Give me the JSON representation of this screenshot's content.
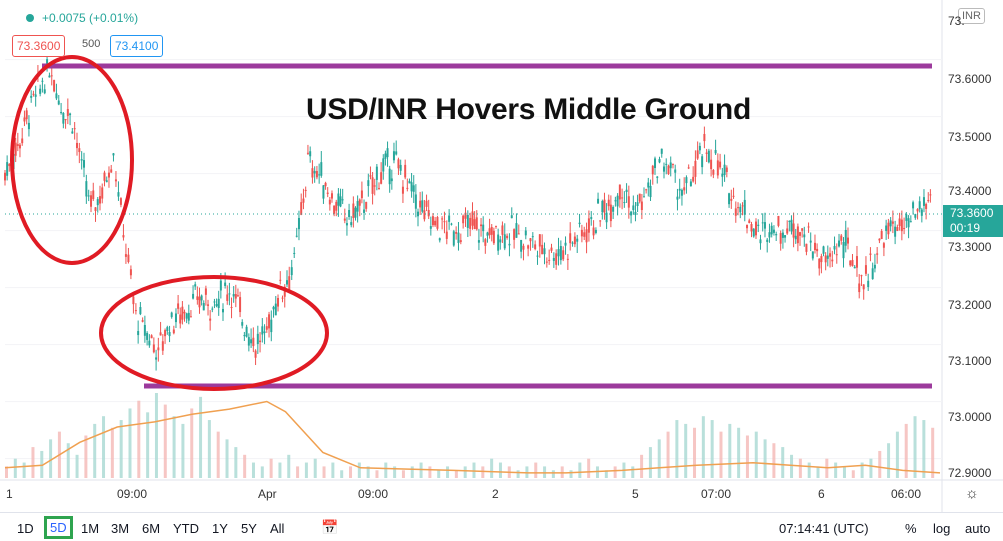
{
  "header": {
    "change_text": "+0.0075 (+0.01%)",
    "bid": "73.3600",
    "spread": "500",
    "ask": "73.4100",
    "symbol_tag": "INR"
  },
  "headline": "USD/INR Hovers Middle Ground",
  "price_axis": {
    "ticks": [
      "73.6000",
      "73.5000",
      "73.4000",
      "73.3000",
      "73.2000",
      "73.1000",
      "73.0000",
      "72.9000"
    ],
    "top_partial": "73.",
    "current_price": "73.3600",
    "countdown": "00:19"
  },
  "time_axis": {
    "labels": [
      "1",
      "09:00",
      "Apr",
      "09:00",
      "2",
      "5",
      "07:00",
      "6",
      "06:00"
    ]
  },
  "bottom_bar": {
    "ranges": [
      "1D",
      "5D",
      "1M",
      "3M",
      "6M",
      "YTD",
      "1Y",
      "5Y",
      "All"
    ],
    "active_range": "5D",
    "clock": "07:14:41 (UTC)",
    "percent": "%",
    "log": "log",
    "auto": "auto"
  },
  "colors": {
    "up": "#26a69a",
    "down": "#ef5350",
    "level_line": "#9c3a9c",
    "annotation_circle": "#e01b24",
    "moving_average": "#f0a050"
  },
  "chart_data": {
    "type": "candlestick",
    "ylim": [
      72.88,
      73.68
    ],
    "levels": [
      73.62,
      73.055
    ],
    "series_path": [
      [
        0,
        73.4
      ],
      [
        8,
        73.46
      ],
      [
        14,
        73.52
      ],
      [
        20,
        73.56
      ],
      [
        25,
        73.58
      ],
      [
        30,
        73.52
      ],
      [
        36,
        73.5
      ],
      [
        41,
        73.41
      ],
      [
        46,
        73.34
      ],
      [
        52,
        73.37
      ],
      [
        58,
        73.44
      ],
      [
        62,
        73.33
      ],
      [
        66,
        73.24
      ],
      [
        70,
        73.15
      ],
      [
        76,
        73.12
      ],
      [
        82,
        73.09
      ],
      [
        88,
        73.14
      ],
      [
        96,
        73.16
      ],
      [
        104,
        73.18
      ],
      [
        112,
        73.17
      ],
      [
        120,
        73.2
      ],
      [
        128,
        73.14
      ],
      [
        134,
        73.1
      ],
      [
        140,
        73.12
      ],
      [
        146,
        73.19
      ],
      [
        152,
        73.22
      ],
      [
        156,
        73.27
      ],
      [
        162,
        73.42
      ],
      [
        168,
        73.4
      ],
      [
        176,
        73.35
      ],
      [
        184,
        73.32
      ],
      [
        192,
        73.35
      ],
      [
        200,
        73.4
      ],
      [
        208,
        73.42
      ],
      [
        214,
        73.39
      ],
      [
        222,
        73.34
      ],
      [
        230,
        73.31
      ],
      [
        240,
        73.3
      ],
      [
        250,
        73.31
      ],
      [
        258,
        73.29
      ],
      [
        266,
        73.3
      ],
      [
        276,
        73.29
      ],
      [
        286,
        73.27
      ],
      [
        296,
        73.26
      ],
      [
        306,
        73.29
      ],
      [
        316,
        73.32
      ],
      [
        324,
        73.35
      ],
      [
        330,
        73.38
      ],
      [
        336,
        73.33
      ],
      [
        344,
        73.37
      ],
      [
        350,
        73.42
      ],
      [
        356,
        73.41
      ],
      [
        362,
        73.36
      ],
      [
        368,
        73.4
      ],
      [
        374,
        73.44
      ],
      [
        380,
        73.42
      ],
      [
        386,
        73.38
      ],
      [
        392,
        73.35
      ],
      [
        398,
        73.32
      ],
      [
        404,
        73.29
      ],
      [
        410,
        73.31
      ],
      [
        416,
        73.3
      ],
      [
        424,
        73.31
      ],
      [
        432,
        73.27
      ],
      [
        440,
        73.24
      ],
      [
        446,
        73.28
      ],
      [
        452,
        73.26
      ],
      [
        458,
        73.21
      ],
      [
        464,
        73.24
      ],
      [
        470,
        73.29
      ],
      [
        476,
        73.31
      ],
      [
        482,
        73.3
      ],
      [
        488,
        73.33
      ],
      [
        496,
        73.36
      ]
    ],
    "volume": [
      3,
      5,
      4,
      8,
      7,
      10,
      12,
      9,
      6,
      11,
      14,
      16,
      13,
      15,
      18,
      20,
      17,
      22,
      19,
      16,
      14,
      18,
      21,
      15,
      12,
      10,
      8,
      6,
      4,
      3,
      5,
      4,
      6,
      3,
      4,
      5,
      3,
      4,
      2,
      3,
      4,
      3,
      2,
      4,
      3,
      2,
      3,
      4,
      3,
      2,
      3,
      2,
      3,
      4,
      3,
      5,
      4,
      3,
      2,
      3,
      4,
      3,
      2,
      3,
      2,
      4,
      5,
      3,
      2,
      3,
      4,
      3,
      6,
      8,
      10,
      12,
      15,
      14,
      13,
      16,
      15,
      12,
      14,
      13,
      11,
      12,
      10,
      9,
      8,
      6,
      5,
      4,
      3,
      5,
      4,
      3,
      2,
      4,
      5,
      7,
      9,
      12,
      14,
      16,
      15,
      13
    ],
    "ma_path": [
      [
        0,
        0.04
      ],
      [
        20,
        0.05
      ],
      [
        40,
        0.14
      ],
      [
        60,
        0.2
      ],
      [
        80,
        0.22
      ],
      [
        100,
        0.25
      ],
      [
        120,
        0.27
      ],
      [
        140,
        0.3
      ],
      [
        150,
        0.26
      ],
      [
        170,
        0.1
      ],
      [
        190,
        0.04
      ],
      [
        240,
        0.03
      ],
      [
        280,
        0.02
      ],
      [
        300,
        0.02
      ],
      [
        330,
        0.03
      ],
      [
        350,
        0.04
      ],
      [
        370,
        0.05
      ],
      [
        400,
        0.06
      ],
      [
        420,
        0.05
      ],
      [
        440,
        0.04
      ],
      [
        460,
        0.05
      ],
      [
        480,
        0.03
      ],
      [
        500,
        0.02
      ]
    ]
  }
}
